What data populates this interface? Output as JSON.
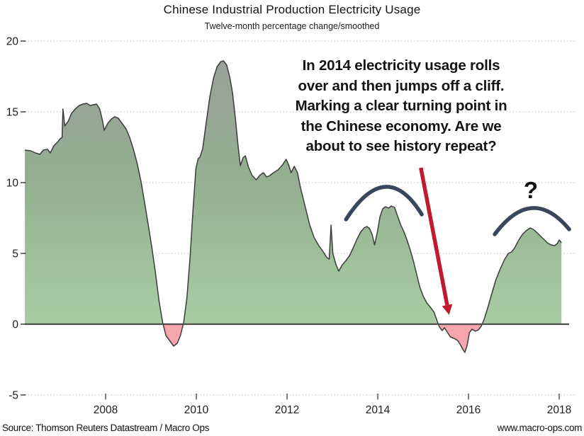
{
  "header": {
    "title": "Chinese Industrial Production Electricity Usage",
    "subtitle": "Twelve-month percentage change/smoothed"
  },
  "annotation": {
    "lines": [
      "In 2014 electricity usage rolls",
      "over and then jumps off a cliff.",
      "Marking a clear turning point in",
      "the Chinese economy. Are we",
      "about to see history repeat?"
    ],
    "text_color": "#141414"
  },
  "callouts": {
    "question_mark": "?"
  },
  "footer": {
    "source": "Source: Thomson Reuters Datastream / Macro Ops",
    "website": "www.macro-ops.com"
  },
  "chart_data": {
    "type": "area",
    "title": "Chinese Industrial Production Electricity Usage",
    "subtitle": "Twelve-month percentage change/smoothed",
    "xlabel": "",
    "ylabel": "",
    "xlim": [
      2006.2,
      2018.35
    ],
    "ylim": [
      -5,
      20
    ],
    "y_ticks": [
      20,
      15,
      10,
      5,
      0,
      -5
    ],
    "x_ticks": [
      2008,
      2010,
      2012,
      2014,
      2016,
      2018
    ],
    "grid": "dotted horizontal",
    "zero_line": true,
    "colors": {
      "fill_top": "#9aa099",
      "fill_mid": "#93af90",
      "fill_bottom": "#a7cda2",
      "fill_negative": "#f7a6ae",
      "line": "#3c3c3c",
      "zero_line": "#4f4f4f",
      "grid": "#bdbdbd",
      "arc": "#3a465a",
      "arrow": "#bf1a2e"
    },
    "series": [
      {
        "name": "Industrial production electricity usage, 12-month % change (smoothed)",
        "points": [
          [
            2006.22,
            12.3
          ],
          [
            2006.35,
            12.25
          ],
          [
            2006.45,
            12.1
          ],
          [
            2006.55,
            12.0
          ],
          [
            2006.63,
            12.3
          ],
          [
            2006.72,
            12.35
          ],
          [
            2006.78,
            12.1
          ],
          [
            2006.86,
            12.6
          ],
          [
            2006.95,
            12.9
          ],
          [
            2007.0,
            13.1
          ],
          [
            2007.04,
            13.2
          ],
          [
            2007.06,
            15.2
          ],
          [
            2007.1,
            14.0
          ],
          [
            2007.17,
            14.3
          ],
          [
            2007.25,
            14.9
          ],
          [
            2007.33,
            15.2
          ],
          [
            2007.42,
            15.45
          ],
          [
            2007.5,
            15.55
          ],
          [
            2007.58,
            15.6
          ],
          [
            2007.66,
            15.45
          ],
          [
            2007.73,
            15.5
          ],
          [
            2007.8,
            15.55
          ],
          [
            2007.87,
            15.2
          ],
          [
            2007.93,
            14.4
          ],
          [
            2007.97,
            13.7
          ],
          [
            2008.05,
            14.2
          ],
          [
            2008.13,
            14.5
          ],
          [
            2008.2,
            14.65
          ],
          [
            2008.28,
            14.55
          ],
          [
            2008.36,
            14.2
          ],
          [
            2008.45,
            13.8
          ],
          [
            2008.53,
            13.2
          ],
          [
            2008.61,
            12.4
          ],
          [
            2008.7,
            11.3
          ],
          [
            2008.78,
            10.1
          ],
          [
            2008.86,
            8.6
          ],
          [
            2008.94,
            7.0
          ],
          [
            2009.02,
            5.4
          ],
          [
            2009.1,
            3.6
          ],
          [
            2009.18,
            1.6
          ],
          [
            2009.26,
            0.1
          ],
          [
            2009.33,
            -0.8
          ],
          [
            2009.42,
            -1.2
          ],
          [
            2009.5,
            -1.55
          ],
          [
            2009.58,
            -1.35
          ],
          [
            2009.65,
            -0.8
          ],
          [
            2009.72,
            0.1
          ],
          [
            2009.79,
            1.8
          ],
          [
            2009.86,
            4.6
          ],
          [
            2009.93,
            8.2
          ],
          [
            2009.99,
            11.0
          ],
          [
            2010.04,
            11.7
          ],
          [
            2010.08,
            11.8
          ],
          [
            2010.14,
            12.4
          ],
          [
            2010.22,
            14.3
          ],
          [
            2010.3,
            16.1
          ],
          [
            2010.38,
            17.4
          ],
          [
            2010.46,
            18.2
          ],
          [
            2010.54,
            18.55
          ],
          [
            2010.6,
            18.6
          ],
          [
            2010.67,
            18.3
          ],
          [
            2010.74,
            17.4
          ],
          [
            2010.8,
            16.3
          ],
          [
            2010.86,
            14.6
          ],
          [
            2010.92,
            12.6
          ],
          [
            2010.97,
            11.2
          ],
          [
            2011.03,
            11.75
          ],
          [
            2011.08,
            11.9
          ],
          [
            2011.15,
            11.1
          ],
          [
            2011.23,
            10.5
          ],
          [
            2011.32,
            10.2
          ],
          [
            2011.41,
            10.55
          ],
          [
            2011.48,
            10.7
          ],
          [
            2011.55,
            10.4
          ],
          [
            2011.62,
            10.5
          ],
          [
            2011.7,
            10.7
          ],
          [
            2011.8,
            10.9
          ],
          [
            2011.9,
            11.25
          ],
          [
            2011.98,
            11.65
          ],
          [
            2012.03,
            11.3
          ],
          [
            2012.09,
            10.7
          ],
          [
            2012.16,
            11.15
          ],
          [
            2012.23,
            10.7
          ],
          [
            2012.3,
            9.6
          ],
          [
            2012.4,
            8.3
          ],
          [
            2012.5,
            7.0
          ],
          [
            2012.6,
            6.1
          ],
          [
            2012.7,
            5.55
          ],
          [
            2012.8,
            5.1
          ],
          [
            2012.88,
            4.7
          ],
          [
            2012.93,
            4.6
          ],
          [
            2012.97,
            7.0
          ],
          [
            2013.01,
            5.0
          ],
          [
            2013.08,
            4.2
          ],
          [
            2013.14,
            3.75
          ],
          [
            2013.22,
            4.2
          ],
          [
            2013.3,
            4.5
          ],
          [
            2013.38,
            4.85
          ],
          [
            2013.46,
            5.4
          ],
          [
            2013.54,
            6.0
          ],
          [
            2013.62,
            6.5
          ],
          [
            2013.7,
            6.8
          ],
          [
            2013.76,
            6.9
          ],
          [
            2013.82,
            6.75
          ],
          [
            2013.88,
            6.3
          ],
          [
            2013.93,
            5.6
          ],
          [
            2013.99,
            6.5
          ],
          [
            2014.05,
            7.6
          ],
          [
            2014.11,
            8.15
          ],
          [
            2014.17,
            8.3
          ],
          [
            2014.24,
            8.2
          ],
          [
            2014.3,
            8.35
          ],
          [
            2014.37,
            8.25
          ],
          [
            2014.44,
            7.6
          ],
          [
            2014.51,
            7.0
          ],
          [
            2014.58,
            6.5
          ],
          [
            2014.65,
            5.9
          ],
          [
            2014.72,
            5.2
          ],
          [
            2014.79,
            4.4
          ],
          [
            2014.86,
            3.5
          ],
          [
            2014.93,
            2.6
          ],
          [
            2015.0,
            2.0
          ],
          [
            2015.08,
            1.5
          ],
          [
            2015.16,
            1.2
          ],
          [
            2015.24,
            0.85
          ],
          [
            2015.3,
            0.3
          ],
          [
            2015.36,
            -0.2
          ],
          [
            2015.42,
            -0.45
          ],
          [
            2015.47,
            -0.25
          ],
          [
            2015.53,
            -0.55
          ],
          [
            2015.6,
            -0.9
          ],
          [
            2015.68,
            -1.0
          ],
          [
            2015.76,
            -1.15
          ],
          [
            2015.82,
            -1.45
          ],
          [
            2015.88,
            -1.8
          ],
          [
            2015.92,
            -2.0
          ],
          [
            2015.97,
            -1.5
          ],
          [
            2016.02,
            -0.6
          ],
          [
            2016.08,
            -0.35
          ],
          [
            2016.15,
            -0.5
          ],
          [
            2016.22,
            -0.4
          ],
          [
            2016.28,
            -0.15
          ],
          [
            2016.34,
            0.3
          ],
          [
            2016.42,
            1.1
          ],
          [
            2016.5,
            2.0
          ],
          [
            2016.6,
            3.1
          ],
          [
            2016.7,
            3.9
          ],
          [
            2016.8,
            4.6
          ],
          [
            2016.88,
            5.0
          ],
          [
            2016.95,
            5.1
          ],
          [
            2017.02,
            5.4
          ],
          [
            2017.1,
            5.9
          ],
          [
            2017.18,
            6.3
          ],
          [
            2017.27,
            6.6
          ],
          [
            2017.36,
            6.8
          ],
          [
            2017.43,
            6.7
          ],
          [
            2017.5,
            6.5
          ],
          [
            2017.58,
            6.25
          ],
          [
            2017.66,
            6.0
          ],
          [
            2017.74,
            5.75
          ],
          [
            2017.82,
            5.6
          ],
          [
            2017.9,
            5.55
          ],
          [
            2017.96,
            5.7
          ],
          [
            2018.0,
            5.95
          ],
          [
            2018.05,
            5.75
          ]
        ]
      }
    ],
    "annotations": [
      {
        "kind": "arc",
        "name": "hand-drawn-arc-2014",
        "start": [
          2013.3,
          7.4
        ],
        "apex": [
          2014.16,
          9.7
        ],
        "end": [
          2014.97,
          7.75
        ]
      },
      {
        "kind": "arc",
        "name": "hand-drawn-arc-2017",
        "start": [
          2016.58,
          6.35
        ],
        "apex": [
          2017.4,
          8.2
        ],
        "end": [
          2018.22,
          6.7
        ]
      },
      {
        "kind": "arrow",
        "name": "red-arrow",
        "start": [
          2014.95,
          11.05
        ],
        "end": [
          2015.53,
          1.35
        ]
      }
    ]
  }
}
